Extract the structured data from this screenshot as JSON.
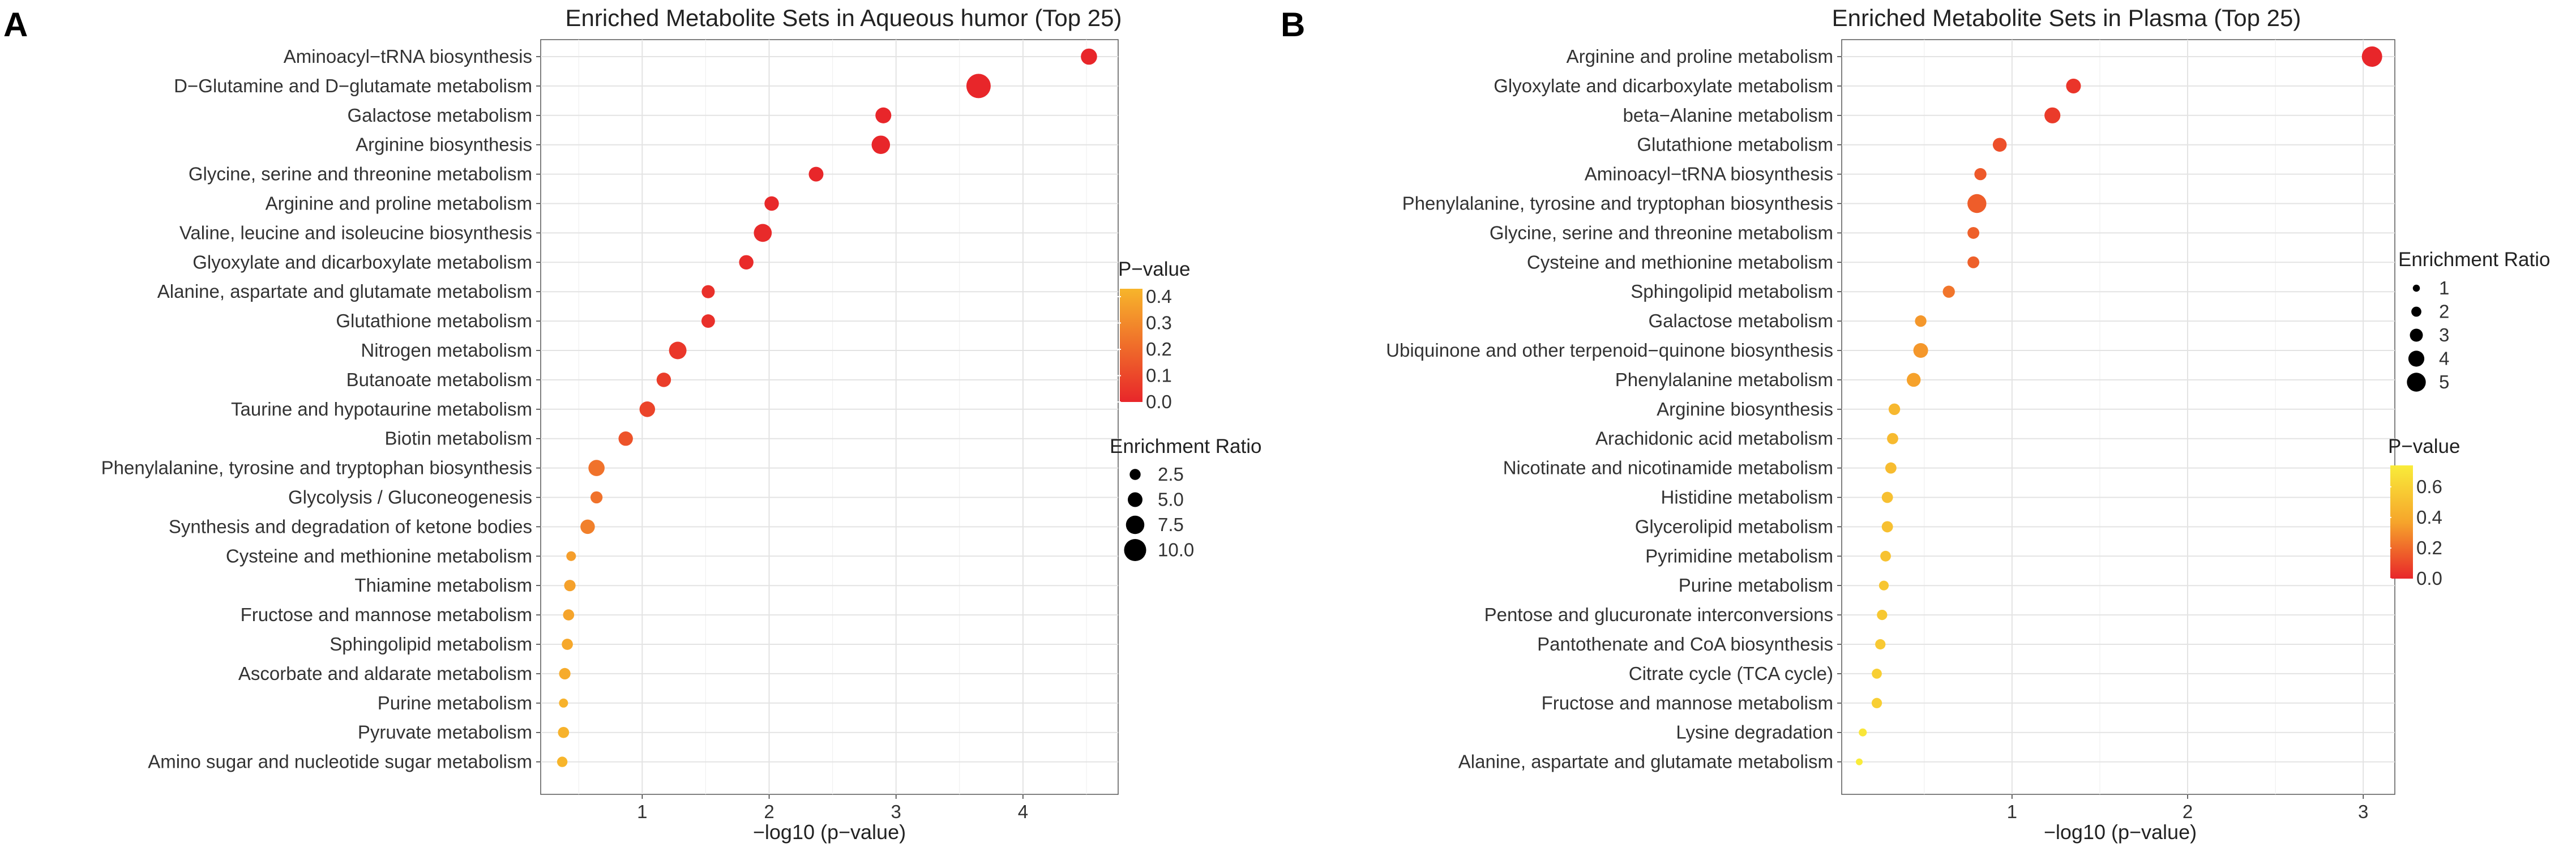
{
  "chart_data": [
    {
      "panel": "A",
      "type": "scatter",
      "title": "Enriched Metabolite Sets in Aqueous humor (Top 25)",
      "xlabel": "−log10 (p−value)",
      "ylabel": "",
      "xlim": [
        0.2,
        4.75
      ],
      "xticks": [
        "1",
        "2",
        "3",
        "4"
      ],
      "grid": true,
      "categories": [
        "Aminoacyl−tRNA biosynthesis",
        "D−Glutamine and D−glutamate metabolism",
        "Galactose metabolism",
        "Arginine biosynthesis",
        "Glycine, serine and threonine metabolism",
        "Arginine and proline metabolism",
        "Valine, leucine and isoleucine biosynthesis",
        "Glyoxylate and dicarboxylate metabolism",
        "Alanine, aspartate and glutamate metabolism",
        "Glutathione metabolism",
        "Nitrogen metabolism",
        "Butanoate metabolism",
        "Taurine and hypotaurine metabolism",
        "Biotin metabolism",
        "Phenylalanine, tyrosine and tryptophan biosynthesis",
        "Glycolysis / Gluconeogenesis",
        "Synthesis and degradation of ketone bodies",
        "Cysteine and methionine metabolism",
        "Thiamine metabolism",
        "Fructose and mannose metabolism",
        "Sphingolipid metabolism",
        "Ascorbate and aldarate metabolism",
        "Purine metabolism",
        "Pyruvate metabolism",
        "Amino sugar and nucleotide sugar metabolism"
      ],
      "x": [
        4.52,
        3.65,
        2.9,
        2.88,
        2.37,
        2.02,
        1.95,
        1.82,
        1.52,
        1.52,
        1.28,
        1.17,
        1.04,
        0.87,
        0.64,
        0.64,
        0.57,
        0.44,
        0.43,
        0.42,
        0.41,
        0.39,
        0.38,
        0.38,
        0.37
      ],
      "enrichment_ratio": [
        6.0,
        11.5,
        5.8,
        7.5,
        5.0,
        4.8,
        7.2,
        4.8,
        3.9,
        4.2,
        6.9,
        4.8,
        5.6,
        4.8,
        6.0,
        3.2,
        4.8,
        1.6,
        2.8,
        2.6,
        2.6,
        2.8,
        1.2,
        2.6,
        2.1
      ],
      "p_value": [
        3e-05,
        0.0002,
        0.0013,
        0.0013,
        0.0043,
        0.0095,
        0.011,
        0.015,
        0.03,
        0.03,
        0.052,
        0.068,
        0.09,
        0.135,
        0.23,
        0.23,
        0.27,
        0.36,
        0.37,
        0.38,
        0.39,
        0.4,
        0.42,
        0.42,
        0.43
      ],
      "legend_p": {
        "title": "P−value",
        "labels": [
          "0.4",
          "0.3",
          "0.2",
          "0.1",
          "0.0"
        ],
        "range": [
          0,
          0.43
        ]
      },
      "legend_size": {
        "title": "Enrichment Ratio",
        "labels": [
          "2.5",
          "5.0",
          "7.5",
          "10.0"
        ],
        "values": [
          2.5,
          5.0,
          7.5,
          10.0
        ]
      },
      "colors": {
        "low": "#e8262a",
        "high": "#f7b52b"
      }
    },
    {
      "panel": "B",
      "type": "scatter",
      "title": "Enriched Metabolite Sets in Plasma (Top 25)",
      "xlabel": "−log10 (p−value)",
      "ylabel": "",
      "xlim": [
        0.03,
        3.18
      ],
      "xticks": [
        "1",
        "2",
        "3"
      ],
      "grid": true,
      "categories": [
        "Arginine and proline metabolism",
        "Glyoxylate and dicarboxylate metabolism",
        "beta−Alanine metabolism",
        "Glutathione metabolism",
        "Aminoacyl−tRNA biosynthesis",
        "Phenylalanine, tyrosine and tryptophan biosynthesis",
        "Glycine, serine and threonine metabolism",
        "Cysteine and methionine metabolism",
        "Sphingolipid metabolism",
        "Galactose metabolism",
        "Ubiquinone and other terpenoid−quinone biosynthesis",
        "Phenylalanine metabolism",
        "Arginine biosynthesis",
        "Arachidonic acid metabolism",
        "Nicotinate and nicotinamide metabolism",
        "Histidine metabolism",
        "Glycerolipid metabolism",
        "Pyrimidine metabolism",
        "Purine metabolism",
        "Pentose and glucuronate interconversions",
        "Pantothenate and CoA biosynthesis",
        "Citrate cycle (TCA cycle)",
        "Fructose and mannose metabolism",
        "Lysine degradation",
        "Alanine, aspartate and glutamate metabolism"
      ],
      "x": [
        3.05,
        1.35,
        1.23,
        0.93,
        0.82,
        0.8,
        0.78,
        0.78,
        0.64,
        0.48,
        0.48,
        0.44,
        0.33,
        0.32,
        0.31,
        0.29,
        0.29,
        0.28,
        0.27,
        0.26,
        0.25,
        0.23,
        0.23,
        0.15,
        0.13
      ],
      "enrichment_ratio": [
        5.5,
        3.6,
        4.0,
        3.3,
        2.7,
        5.0,
        2.6,
        2.6,
        2.7,
        2.5,
        3.6,
        3.3,
        2.5,
        2.4,
        2.4,
        2.4,
        2.4,
        2.2,
        1.9,
        2.1,
        2.1,
        2.0,
        2.1,
        1.3,
        0.9
      ],
      "p_value": [
        0.0009,
        0.045,
        0.06,
        0.12,
        0.15,
        0.16,
        0.17,
        0.17,
        0.23,
        0.33,
        0.33,
        0.36,
        0.47,
        0.48,
        0.49,
        0.51,
        0.51,
        0.52,
        0.54,
        0.55,
        0.56,
        0.59,
        0.59,
        0.71,
        0.74
      ],
      "legend_size": {
        "title": "Enrichment Ratio",
        "labels": [
          "1",
          "2",
          "3",
          "4",
          "5"
        ],
        "values": [
          1,
          2,
          3,
          4,
          5
        ]
      },
      "legend_p": {
        "title": "P−value",
        "labels": [
          "0.6",
          "0.4",
          "0.2",
          "0.0"
        ],
        "range": [
          0,
          0.74
        ]
      },
      "colors": {
        "low": "#e8262a",
        "mid": "#f6a52b",
        "high": "#f9ec3a"
      }
    }
  ]
}
